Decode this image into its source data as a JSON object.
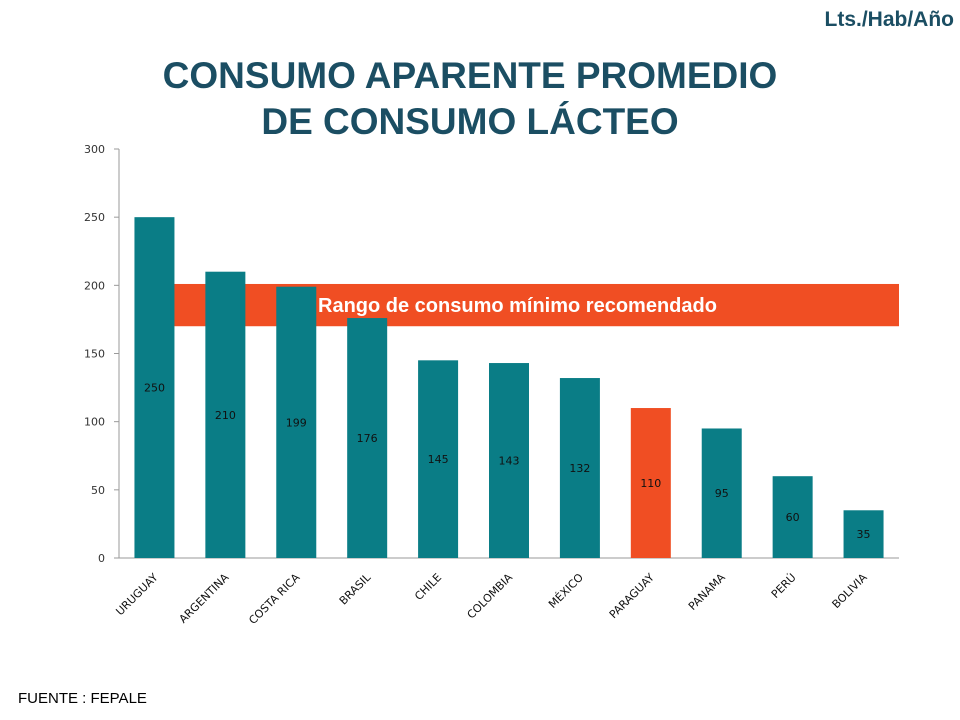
{
  "unit_label": "Lts./Hab/Año",
  "title_line1": "CONSUMO  APARENTE PROMEDIO",
  "title_line2": "DE CONSUMO LÁCTEO",
  "source": "FUENTE : FEPALE",
  "chart_data": {
    "type": "bar",
    "title": "CONSUMO  APARENTE PROMEDIO DE CONSUMO LÁCTEO",
    "categories": [
      "URUGUAY",
      "ARGENTINA",
      "COSTA RICA",
      "BRASIL",
      "CHILE",
      "COLOMBIA",
      "MÉXICO",
      "PARAGUAY",
      "PANAMA",
      "PERÚ",
      "BOLIVIA"
    ],
    "values": [
      250,
      210,
      199,
      176,
      145,
      143,
      132,
      110,
      95,
      60,
      35
    ],
    "data_labels": [
      "250",
      "210",
      "199",
      "176",
      "145",
      "143",
      "132",
      "110",
      "95",
      "60",
      "35"
    ],
    "ylim": [
      0,
      300
    ],
    "yticks": [
      "0",
      "50",
      "100",
      "150",
      "200",
      "250",
      "300"
    ],
    "ytick_values": [
      0,
      50,
      100,
      150,
      200,
      250,
      300
    ],
    "grid": false,
    "bar_color": "#0a7d86",
    "highlight_category": "PARAGUAY",
    "highlight_color": "#f04e23",
    "band": {
      "label": "Rango de consumo mínimo recomendado",
      "from": 170,
      "to": 201,
      "color": "#f04e23"
    }
  }
}
